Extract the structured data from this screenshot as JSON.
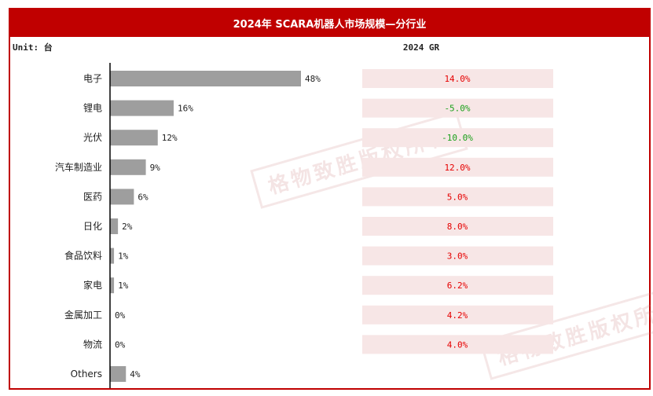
{
  "header": {
    "title": "2024年 SCARA机器人市场规模—分行业"
  },
  "unit_label": "Unit: 台",
  "gr_header": "2024 GR",
  "watermark_text": "格物致胜版权所有",
  "colors": {
    "bar": "#9e9e9e",
    "gr_box": "#f7e6e6",
    "positive": "#e60000",
    "negative": "#1aa01a",
    "frame": "#c00000"
  },
  "chart_data": {
    "type": "bar",
    "orientation": "horizontal",
    "title": "2024年 SCARA机器人市场规模—分行业",
    "categories": [
      "电子",
      "锂电",
      "光伏",
      "汽车制造业",
      "医药",
      "日化",
      "食品饮料",
      "家电",
      "金属加工",
      "物流",
      "Others"
    ],
    "values": [
      48,
      16,
      12,
      9,
      6,
      2,
      1,
      1,
      0,
      0,
      4
    ],
    "value_labels": [
      "48%",
      "16%",
      "12%",
      "9%",
      "6%",
      "2%",
      "1%",
      "1%",
      "0%",
      "0%",
      "4%"
    ],
    "unit": "%",
    "xlim": [
      0,
      50
    ],
    "growth_rate": {
      "header": "2024 GR",
      "labels": [
        "14.0%",
        "-5.0%",
        "-10.0%",
        "12.0%",
        "5.0%",
        "8.0%",
        "3.0%",
        "6.2%",
        "4.2%",
        "4.0%",
        ""
      ],
      "values": [
        14.0,
        -5.0,
        -10.0,
        12.0,
        5.0,
        8.0,
        3.0,
        6.2,
        4.2,
        4.0,
        null
      ]
    },
    "grid": false,
    "legend": "none"
  }
}
